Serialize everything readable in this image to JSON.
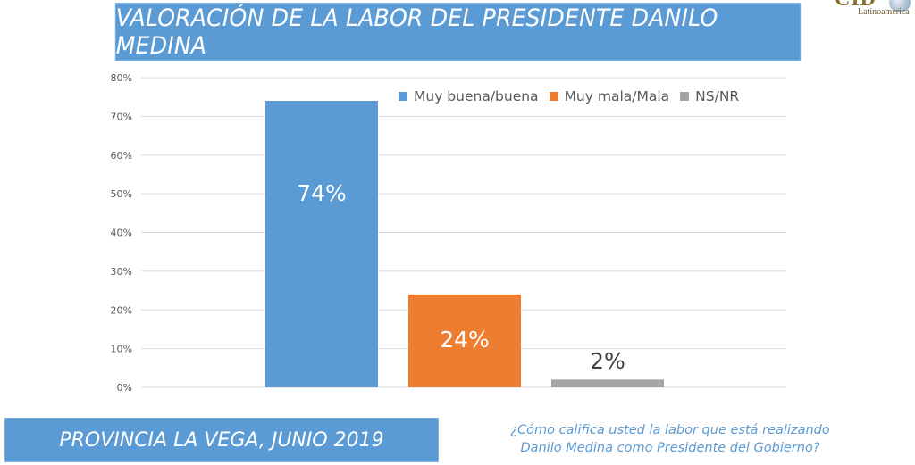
{
  "header": {
    "title": "VALORACIÓN DE LA LABOR DEL PRESIDENTE DANILO MEDINA"
  },
  "logo": {
    "name": "CID",
    "subtitle": "Latinoamerica"
  },
  "footer": {
    "location_date": "PROVINCIA LA VEGA, JUNIO 2019",
    "question_line1": "¿Cómo califica usted la labor que está realizando",
    "question_line2": "Danilo Medina como Presidente del Gobierno?"
  },
  "chart_data": {
    "type": "bar",
    "title": "VALORACIÓN DE LA LABOR DEL PRESIDENTE DANILO MEDINA",
    "xlabel": "",
    "ylabel": "",
    "categories": [
      "Muy buena/buena",
      "Muy mala/Mala",
      "NS/NR"
    ],
    "values": [
      74,
      24,
      2
    ],
    "data_labels": [
      "74%",
      "24%",
      "2%"
    ],
    "colors": [
      "#5b9bd5",
      "#ed7d31",
      "#a5a5a5"
    ],
    "ylim": [
      0,
      80
    ],
    "yticks": [
      0,
      10,
      20,
      30,
      40,
      50,
      60,
      70,
      80
    ],
    "ytick_labels": [
      "0%",
      "10%",
      "20%",
      "30%",
      "40%",
      "50%",
      "60%",
      "70%",
      "80%"
    ],
    "grid": true,
    "legend": {
      "position": "top-right",
      "entries": [
        "Muy buena/buena",
        "Muy mala/Mala",
        "NS/NR"
      ]
    }
  }
}
